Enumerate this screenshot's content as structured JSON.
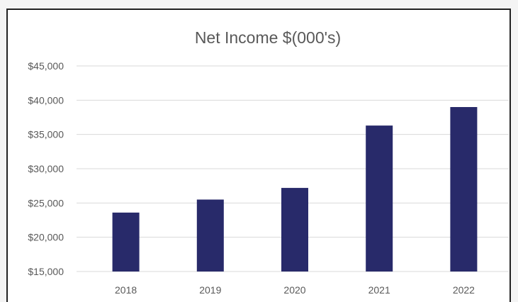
{
  "chart_data": {
    "type": "bar",
    "title": "Net Income $(000's)",
    "xlabel": "",
    "ylabel": "",
    "categories": [
      "2018",
      "2019",
      "2020",
      "2021",
      "2022"
    ],
    "values": [
      23600,
      25500,
      27200,
      36300,
      39000
    ],
    "ylim": [
      15000,
      45000
    ],
    "ytick_step": 5000,
    "ytick_labels": [
      "$15,000",
      "$20,000",
      "$25,000",
      "$30,000",
      "$35,000",
      "$40,000",
      "$45,000"
    ],
    "grid": true,
    "legend": "none",
    "bar_color": "#282a6a"
  }
}
